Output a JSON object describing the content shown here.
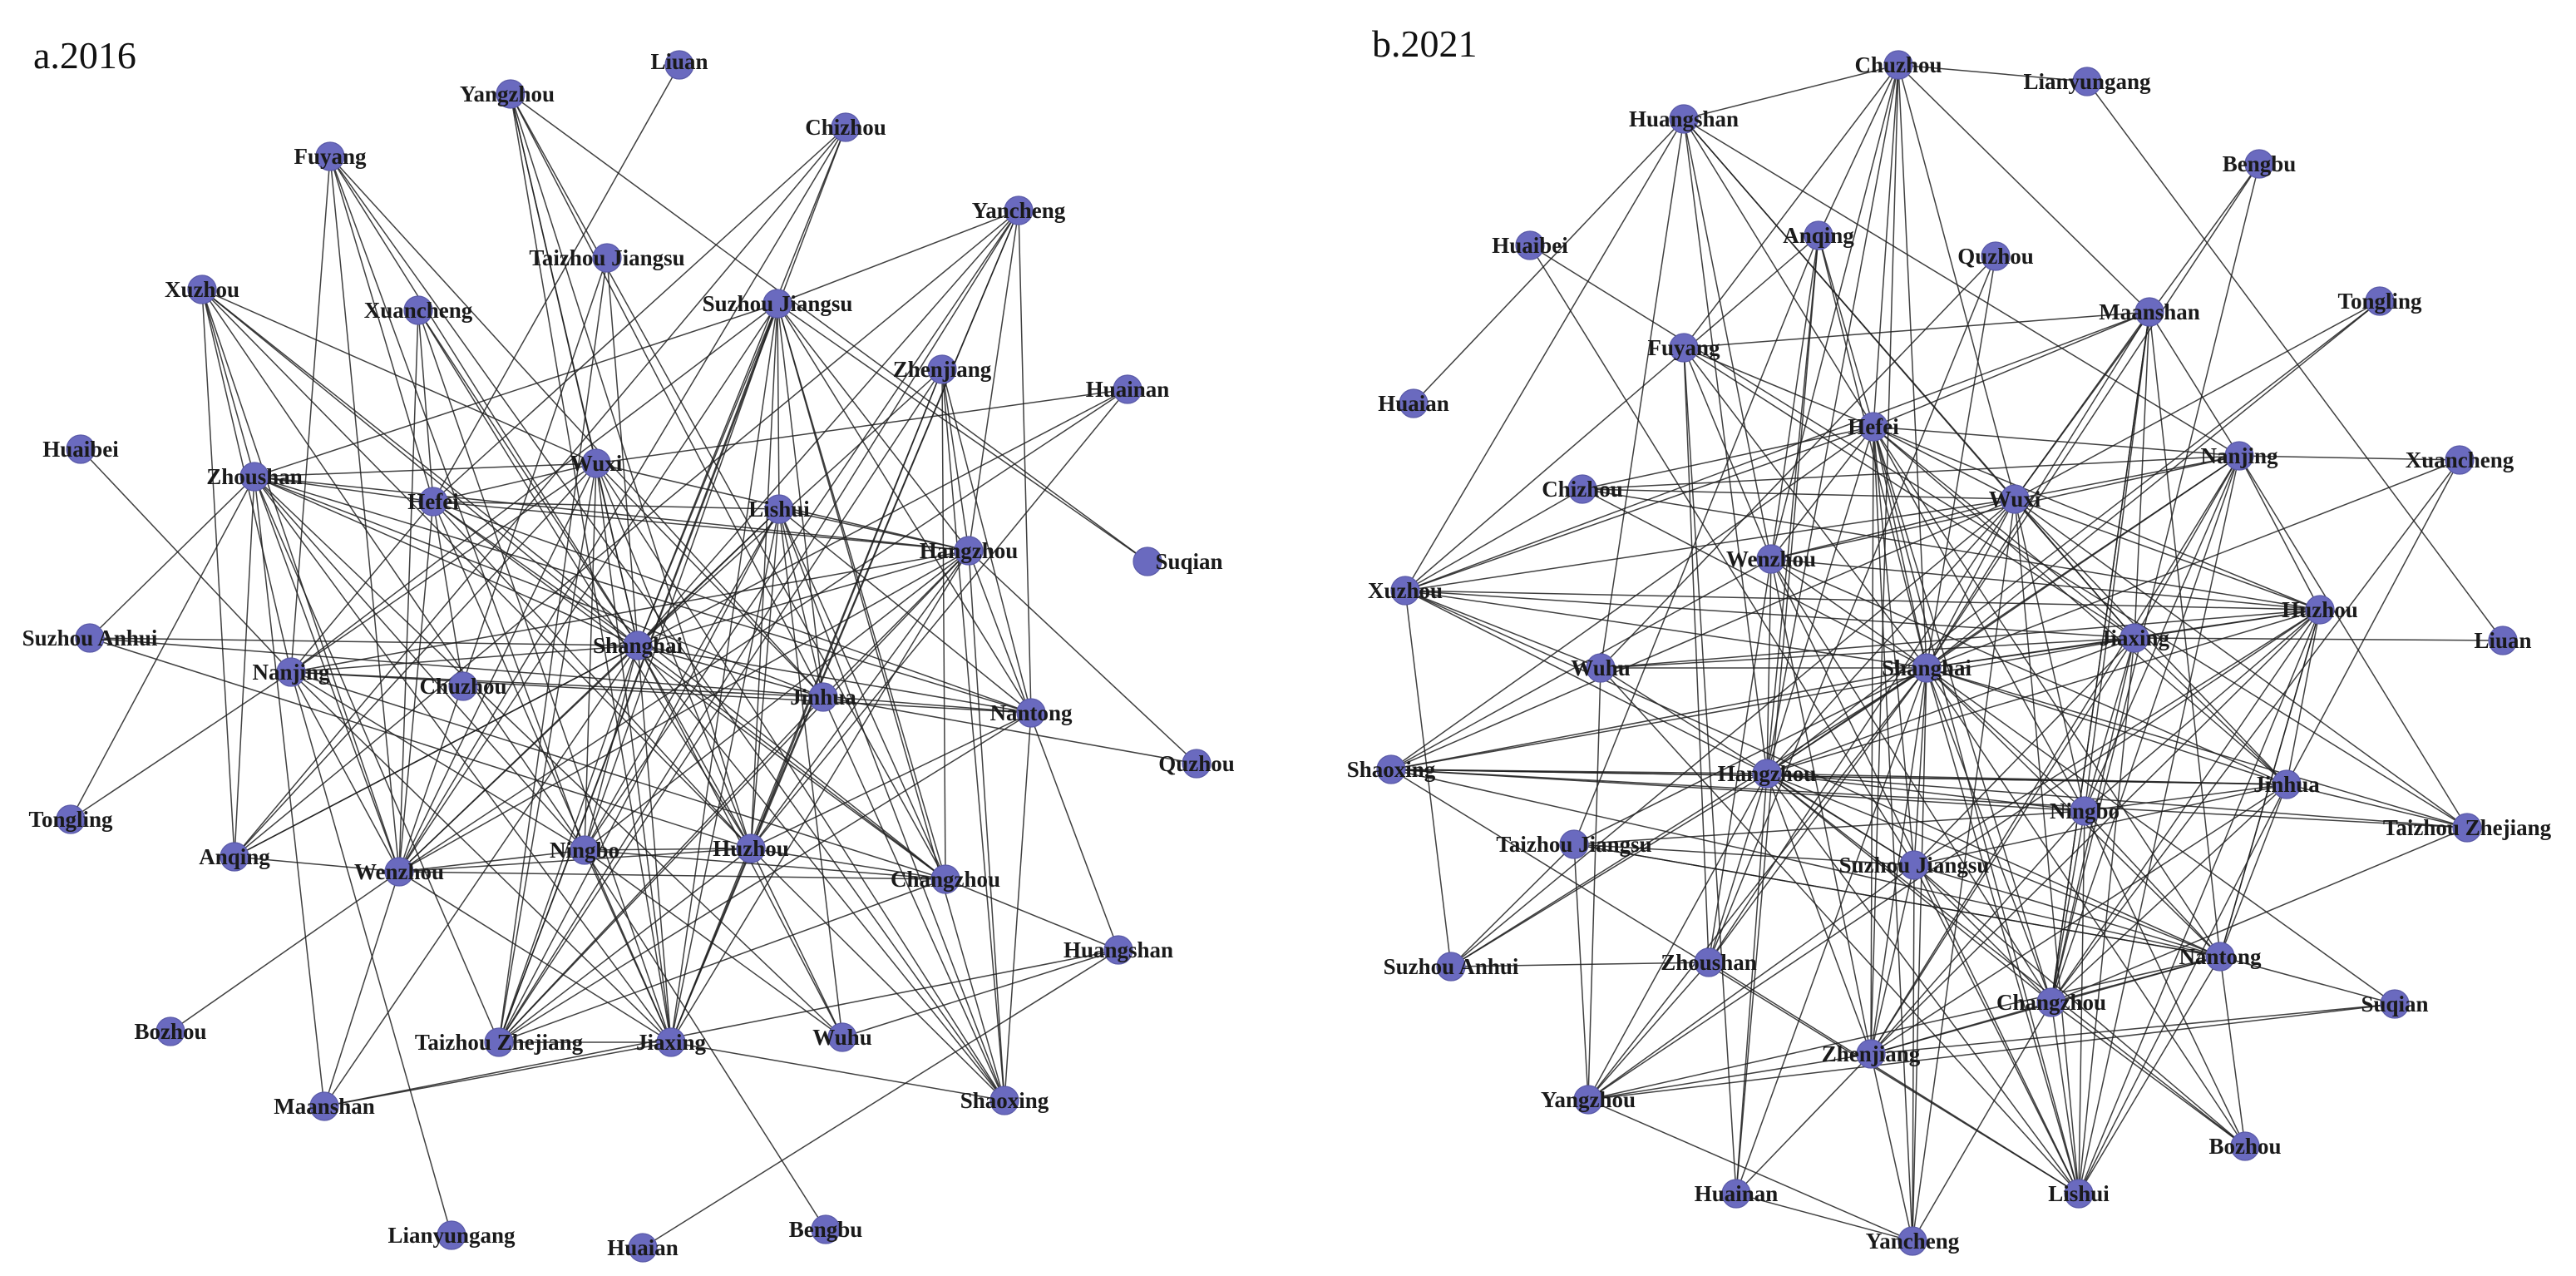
{
  "colors": {
    "node": "#6a6abf",
    "edge": "#1e1e1e",
    "background": "#ffffff"
  },
  "panels": [
    {
      "id": "a",
      "title": "a.2016",
      "nodes": [
        "Liuan",
        "Yangzhou",
        "Chizhou",
        "Fuyang",
        "Yancheng",
        "Taizhou Jiangsu",
        "Suzhou Jiangsu",
        "Xuzhou",
        "Xuancheng",
        "Zhenjiang",
        "Huainan",
        "Huaibei",
        "Zhoushan",
        "Wuxi",
        "Hefei",
        "Lishui",
        "Hangzhou",
        "Suqian",
        "Suzhou Anhui",
        "Shanghai",
        "Nanjing",
        "Chuzhou",
        "Jinhua",
        "Nantong",
        "Quzhou",
        "Tongling",
        "Anqing",
        "Wenzhou",
        "Ningbo",
        "Huzhou",
        "Changzhou",
        "Huangshan",
        "Bozhou",
        "Taizhou Zhejiang",
        "Jiaxing",
        "Wuhu",
        "Shaoxing",
        "Maanshan",
        "Lianyungang",
        "Huaian",
        "Bengbu"
      ]
    },
    {
      "id": "b",
      "title": "b.2021",
      "nodes": [
        "Chuzhou",
        "Lianyungang",
        "Huangshan",
        "Bengbu",
        "Huaibei",
        "Anqing",
        "Quzhou",
        "Tongling",
        "Maanshan",
        "Fuyang",
        "Huaian",
        "Hefei",
        "Nanjing",
        "Xuancheng",
        "Chizhou",
        "Wuxi",
        "Wenzhou",
        "Xuzhou",
        "Huzhou",
        "Liuan",
        "Jiaxing",
        "Wuhu",
        "Shanghai",
        "Shaoxing",
        "Hangzhou",
        "Jinhua",
        "Ningbo",
        "Taizhou Zhejiang",
        "Taizhou Jiangsu",
        "Suzhou Jiangsu",
        "Nantong",
        "Suqian",
        "Suzhou Anhui",
        "Zhoushan",
        "Changzhou",
        "Zhenjiang",
        "Yangzhou",
        "Bozhou",
        "Huainan",
        "Lishui",
        "Yancheng"
      ]
    }
  ]
}
